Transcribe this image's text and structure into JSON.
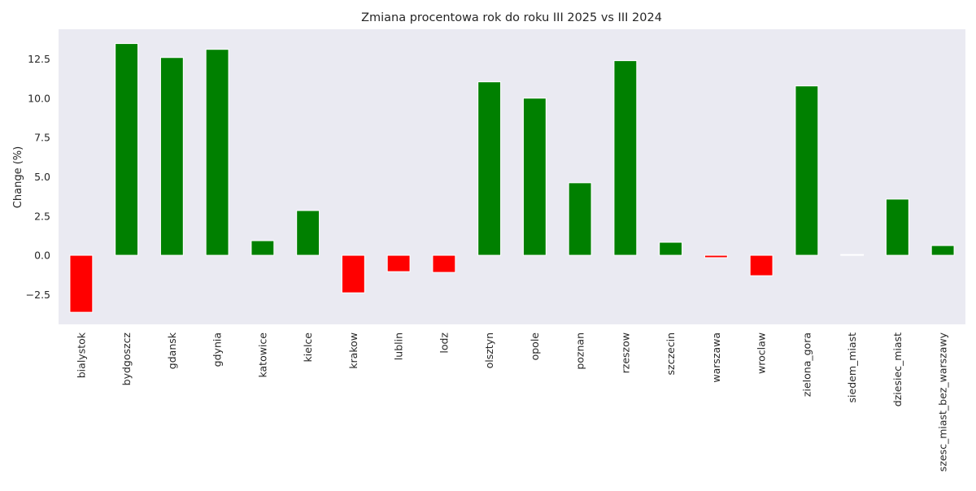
{
  "chart_data": {
    "type": "bar",
    "title": "Zmiana procentowa rok do roku III 2025 vs III 2024",
    "xlabel": "",
    "ylabel": "Change (%)",
    "ylim": [
      -4.4,
      14.4
    ],
    "yticks": [
      -2.5,
      0.0,
      2.5,
      5.0,
      7.5,
      10.0,
      12.5
    ],
    "ytick_labels": [
      "−2.5",
      "0.0",
      "2.5",
      "5.0",
      "7.5",
      "10.0",
      "12.5"
    ],
    "grid": false,
    "categories": [
      "bialystok",
      "bydgoszcz",
      "gdansk",
      "gdynia",
      "katowice",
      "kielce",
      "krakow",
      "lublin",
      "lodz",
      "olsztyn",
      "opole",
      "poznan",
      "rzeszow",
      "szczecin",
      "warszawa",
      "wroclaw",
      "zielona_gora",
      "siedem_miast",
      "dziesiec_miast",
      "szesc_miast_bez_warszawy"
    ],
    "values": [
      -3.63,
      13.49,
      12.6,
      13.12,
      0.93,
      2.85,
      -2.39,
      -1.04,
      -1.09,
      11.05,
      10.01,
      4.62,
      12.4,
      0.83,
      -0.15,
      -1.3,
      10.79,
      0.05,
      3.58,
      0.62
    ],
    "colors": {
      "positive": "#008000",
      "negative": "#ff0000",
      "background": "#eaeaf2"
    }
  }
}
